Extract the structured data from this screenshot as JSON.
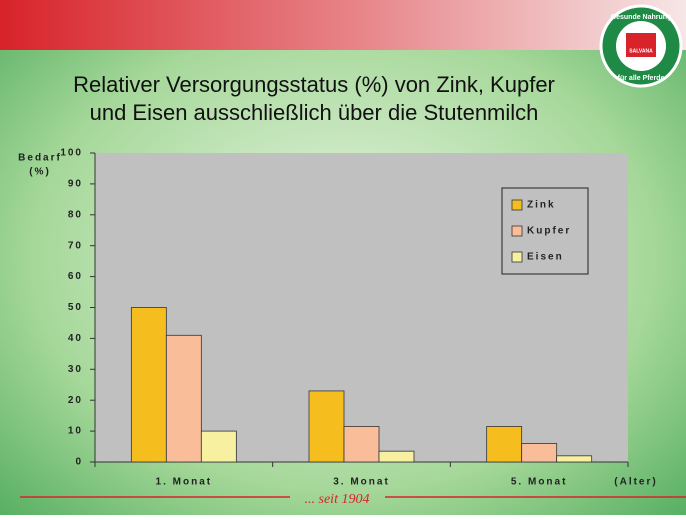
{
  "chart_data": {
    "type": "bar",
    "title": [
      "Relativer Versorgungsstatus (%) von Zink, Kupfer",
      "und Eisen ausschließlich über die Stutenmilch"
    ],
    "y_label": [
      "Bedarf",
      "(%)"
    ],
    "x_label": "(Alter)",
    "categories": [
      "1. Monat",
      "3. Monat",
      "5. Monat"
    ],
    "series": [
      {
        "name": "Zink",
        "color": "#f5be1e",
        "values": [
          50,
          23,
          11.5
        ]
      },
      {
        "name": "Kupfer",
        "color": "#f9bd9a",
        "values": [
          41,
          11.5,
          6
        ]
      },
      {
        "name": "Eisen",
        "color": "#f6f0a0",
        "values": [
          10,
          3.5,
          2
        ]
      }
    ],
    "ylim": [
      0,
      100
    ],
    "yticks": [
      0,
      10,
      20,
      30,
      40,
      50,
      60,
      70,
      80,
      90,
      100
    ],
    "grid": false,
    "legend": "top-right"
  },
  "logo": {
    "top_text": "Gesunde Nahrung",
    "bottom_text": "für alle Pferde",
    "brand": "SALVANA"
  },
  "footer": "... seit 1904"
}
